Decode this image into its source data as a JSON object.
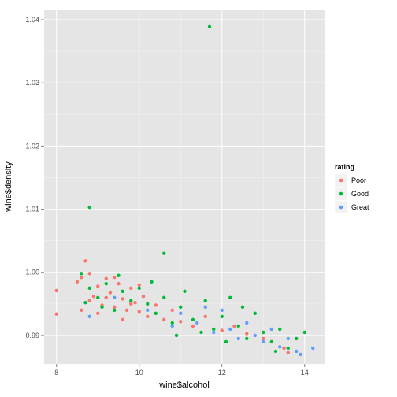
{
  "chart_data": {
    "type": "scatter",
    "xlabel": "wine$alcohol",
    "ylabel": "wine$density",
    "xlim": [
      7.7,
      14.5
    ],
    "ylim": [
      0.9855,
      1.0415
    ],
    "x_ticks": [
      8,
      10,
      12,
      14
    ],
    "x_tick_labels": [
      "8",
      "10",
      "12",
      "14"
    ],
    "y_ticks": [
      0.99,
      1.0,
      1.01,
      1.02,
      1.03,
      1.04
    ],
    "y_tick_labels": [
      "0.99",
      "1.00",
      "1.01",
      "1.02",
      "1.03",
      "1.04"
    ],
    "grid": true,
    "legend": {
      "title": "rating",
      "position": "right",
      "entries": [
        {
          "name": "Poor",
          "color": "#F8766D"
        },
        {
          "name": "Good",
          "color": "#00BA38"
        },
        {
          "name": "Great",
          "color": "#619CFF"
        }
      ]
    },
    "series": [
      {
        "name": "Poor",
        "color": "#F8766D",
        "points": [
          [
            8.0,
            0.9971
          ],
          [
            8.0,
            0.9934
          ],
          [
            8.5,
            0.9985
          ],
          [
            8.6,
            0.9992
          ],
          [
            8.7,
            1.0018
          ],
          [
            8.8,
            0.9955
          ],
          [
            8.9,
            0.9962
          ],
          [
            9.0,
            0.9978
          ],
          [
            9.1,
            0.9948
          ],
          [
            9.2,
            0.999
          ],
          [
            9.3,
            0.9968
          ],
          [
            9.4,
            0.9945
          ],
          [
            9.5,
            0.9982
          ],
          [
            9.6,
            0.9958
          ],
          [
            9.7,
            0.994
          ],
          [
            9.8,
            0.9975
          ],
          [
            9.9,
            0.9952
          ],
          [
            10.0,
            0.9938
          ],
          [
            10.1,
            0.9962
          ],
          [
            10.2,
            0.993
          ],
          [
            10.4,
            0.9948
          ],
          [
            10.6,
            0.9925
          ],
          [
            10.8,
            0.994
          ],
          [
            11.0,
            0.9922
          ],
          [
            11.3,
            0.9915
          ],
          [
            11.6,
            0.993
          ],
          [
            12.0,
            0.9908
          ],
          [
            12.3,
            0.9915
          ],
          [
            12.6,
            0.9903
          ],
          [
            13.0,
            0.9895
          ],
          [
            13.5,
            0.988
          ],
          [
            13.6,
            0.9873
          ],
          [
            8.6,
            0.994
          ],
          [
            8.8,
            0.9998
          ],
          [
            9.0,
            0.9935
          ],
          [
            9.2,
            0.996
          ],
          [
            9.4,
            0.9992
          ],
          [
            9.6,
            0.9925
          ],
          [
            9.8,
            0.995
          ],
          [
            10.0,
            0.998
          ]
        ]
      },
      {
        "name": "Good",
        "color": "#00BA38",
        "points": [
          [
            11.7,
            1.0389
          ],
          [
            8.8,
            1.0103
          ],
          [
            10.6,
            1.003
          ],
          [
            8.6,
            0.9998
          ],
          [
            8.8,
            0.9975
          ],
          [
            9.0,
            0.996
          ],
          [
            9.2,
            0.9982
          ],
          [
            9.4,
            0.994
          ],
          [
            9.6,
            0.997
          ],
          [
            9.8,
            0.9955
          ],
          [
            10.0,
            0.9975
          ],
          [
            10.2,
            0.995
          ],
          [
            10.4,
            0.9935
          ],
          [
            10.6,
            0.996
          ],
          [
            10.8,
            0.992
          ],
          [
            11.0,
            0.9945
          ],
          [
            11.3,
            0.9925
          ],
          [
            11.6,
            0.9955
          ],
          [
            11.8,
            0.991
          ],
          [
            12.0,
            0.993
          ],
          [
            12.2,
            0.996
          ],
          [
            12.4,
            0.9915
          ],
          [
            12.6,
            0.9895
          ],
          [
            12.8,
            0.9935
          ],
          [
            13.0,
            0.9905
          ],
          [
            13.2,
            0.989
          ],
          [
            13.4,
            0.991
          ],
          [
            13.6,
            0.988
          ],
          [
            13.8,
            0.9895
          ],
          [
            14.0,
            0.9905
          ],
          [
            9.5,
            0.9995
          ],
          [
            10.3,
            0.9985
          ],
          [
            11.1,
            0.997
          ],
          [
            8.7,
            0.9952
          ],
          [
            9.1,
            0.9945
          ],
          [
            12.5,
            0.9945
          ],
          [
            11.5,
            0.9905
          ],
          [
            10.9,
            0.99
          ],
          [
            13.3,
            0.9875
          ],
          [
            12.1,
            0.989
          ]
        ]
      },
      {
        "name": "Great",
        "color": "#619CFF",
        "points": [
          [
            8.8,
            0.993
          ],
          [
            9.4,
            0.996
          ],
          [
            10.2,
            0.994
          ],
          [
            10.8,
            0.9915
          ],
          [
            11.0,
            0.9935
          ],
          [
            11.4,
            0.992
          ],
          [
            11.8,
            0.9905
          ],
          [
            12.0,
            0.994
          ],
          [
            12.2,
            0.991
          ],
          [
            12.4,
            0.9895
          ],
          [
            12.6,
            0.992
          ],
          [
            12.8,
            0.99
          ],
          [
            13.0,
            0.989
          ],
          [
            13.2,
            0.991
          ],
          [
            13.4,
            0.9882
          ],
          [
            13.6,
            0.9895
          ],
          [
            13.8,
            0.9875
          ],
          [
            13.9,
            0.987
          ],
          [
            14.2,
            0.988
          ],
          [
            11.6,
            0.9945
          ]
        ]
      }
    ]
  }
}
